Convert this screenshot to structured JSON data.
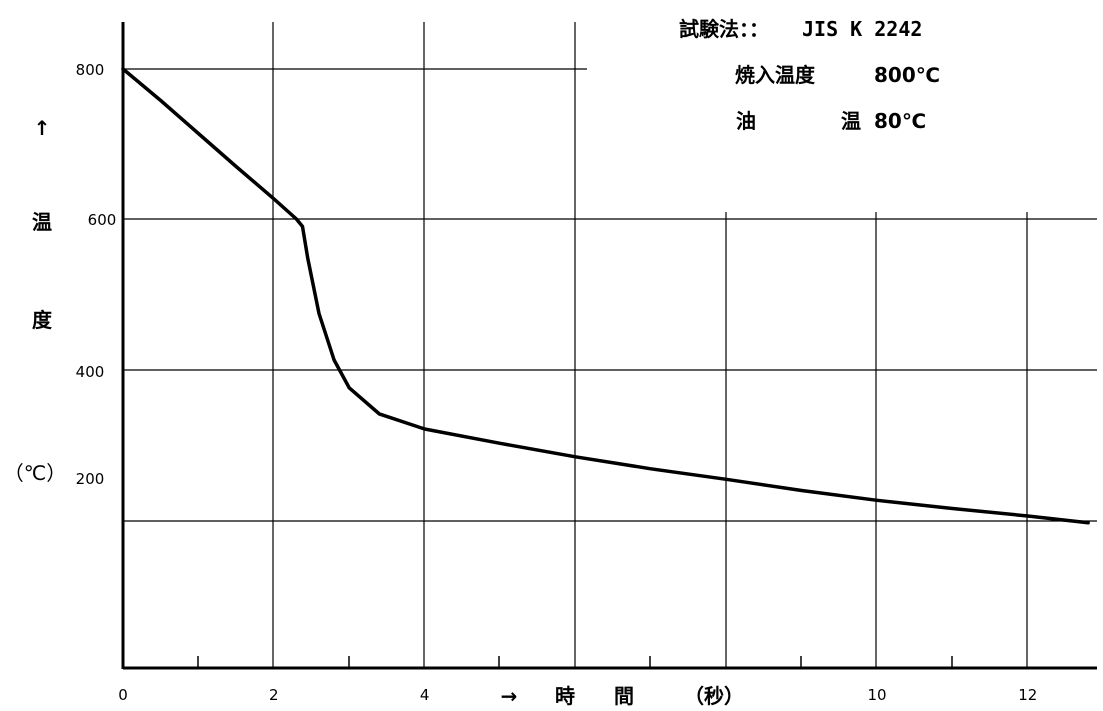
{
  "chart_data": {
    "type": "line",
    "title": "",
    "xlim": [
      0,
      13
    ],
    "ylim": [
      0,
      860
    ],
    "x_ticks": [
      0,
      2,
      4,
      6,
      8,
      10,
      12
    ],
    "x_tick_labels": [
      "0",
      "2",
      "4",
      "",
      "",
      "10",
      "12"
    ],
    "y_ticks": [
      800,
      400,
      200
    ],
    "y_tick_labels": [
      "800",
      "400",
      "200"
    ],
    "y_tick_label_600": "600",
    "grid": true,
    "xlabel": {
      "arrow": "→",
      "time": "時",
      "interval": "間",
      "unit": "（秒）"
    },
    "ylabel": {
      "arrow": "↑",
      "temp1": "温",
      "temp2": "度",
      "unit": "（℃）"
    },
    "annotations": {
      "method_label": "試験法：：",
      "method_value": "JIS K 2242",
      "quench_label": "焼入温度",
      "quench_value": "800℃",
      "oil_label1": "油",
      "oil_label2": "温",
      "oil_value": "80℃"
    },
    "series": [
      {
        "x": [
          0,
          0.5,
          1.0,
          1.5,
          2.0,
          2.3,
          2.38,
          2.45,
          2.6,
          2.8,
          3.0,
          3.4,
          4.0,
          5.0,
          6.0,
          7.0,
          8.0,
          9.0,
          10.0,
          11.0,
          12.0,
          12.8
        ],
        "y": [
          800,
          758,
          714,
          670,
          627,
          600,
          590,
          548,
          474,
          412,
          375,
          340,
          320,
          301,
          283,
          267,
          253,
          238,
          225,
          214,
          204,
          195
        ]
      }
    ]
  }
}
